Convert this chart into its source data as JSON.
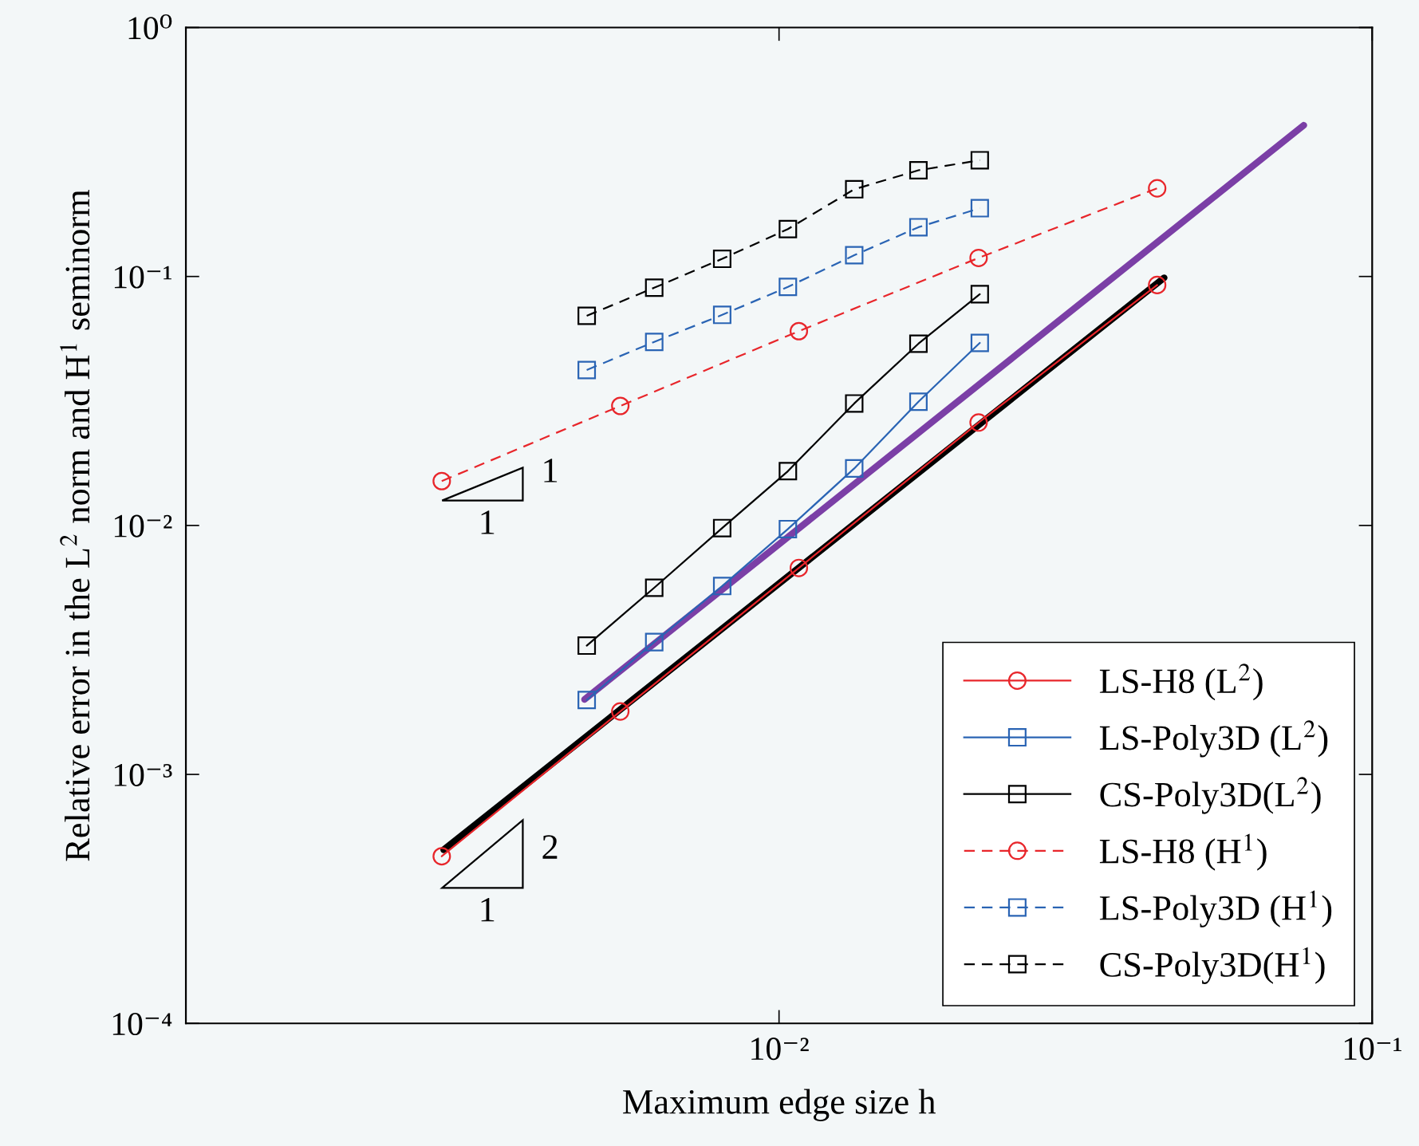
{
  "chart_data": {
    "type": "line",
    "xlabel": "Maximum edge size h",
    "ylabel": "Relative error in the L$^{2}$ norm and H$^{1}$ seminorm",
    "log": "xy",
    "xlim": [
      0.001,
      0.1
    ],
    "ylim": [
      0.0001,
      1
    ],
    "xticks": [
      {
        "value": 0.01,
        "label": "10⁻²"
      },
      {
        "value": 0.1,
        "label": "10⁻¹"
      }
    ],
    "yticks": [
      {
        "value": 0.0001,
        "label": "10⁻⁴"
      },
      {
        "value": 0.001,
        "label": "10⁻³"
      },
      {
        "value": 0.01,
        "label": "10⁻²"
      },
      {
        "value": 0.1,
        "label": "10⁻¹"
      },
      {
        "value": 1,
        "label": "10⁰"
      }
    ],
    "grid": false,
    "legend": "bottom right",
    "series": [
      {
        "name": "LS-H8 (L$^{2}$)",
        "color": "#e8262b",
        "marker": "circle",
        "line_style": "solid",
        "x": [
          0.0027,
          0.0054,
          0.0108,
          0.0217,
          0.0434
        ],
        "values": [
          0.000469,
          0.00179,
          0.00675,
          0.0259,
          0.0924
        ]
      },
      {
        "name": "LS-Poly3D (L$^{2}$)",
        "color": "#2a64b4",
        "marker": "square",
        "line_style": "solid",
        "x": [
          0.00474,
          0.00616,
          0.00802,
          0.01035,
          0.01339,
          0.01718,
          0.0218
        ],
        "values": [
          0.00199,
          0.0034,
          0.00571,
          0.00967,
          0.01694,
          0.0314,
          0.0541
        ]
      },
      {
        "name": "CS-Poly3D(L$^{2}$)",
        "color": "#000000",
        "marker": "square",
        "line_style": "solid",
        "x": [
          0.00474,
          0.00616,
          0.00802,
          0.01035,
          0.01339,
          0.01718,
          0.0218
        ],
        "values": [
          0.00329,
          0.00562,
          0.00976,
          0.01652,
          0.0309,
          0.0537,
          0.0849
        ]
      },
      {
        "name": "LS-H8 (H$^{1}$)",
        "color": "#e8262b",
        "marker": "circle",
        "line_style": "dashed",
        "x": [
          0.0027,
          0.0054,
          0.0108,
          0.0217,
          0.0434
        ],
        "values": [
          0.01507,
          0.0302,
          0.0603,
          0.1187,
          0.226
        ]
      },
      {
        "name": "LS-Poly3D (H$^{1}$)",
        "color": "#2a64b4",
        "marker": "square",
        "line_style": "dashed",
        "x": [
          0.00474,
          0.00616,
          0.00802,
          0.01035,
          0.01339,
          0.01718,
          0.0218
        ],
        "values": [
          0.0421,
          0.0546,
          0.0701,
          0.0908,
          0.1217,
          0.1577,
          0.188
        ]
      },
      {
        "name": "CS-Poly3D(H$^{1}$)",
        "color": "#000000",
        "marker": "square",
        "line_style": "dashed",
        "x": [
          0.00474,
          0.00616,
          0.00802,
          0.01035,
          0.01339,
          0.01718,
          0.0218
        ],
        "values": [
          0.0695,
          0.0901,
          0.1177,
          0.155,
          0.224,
          0.267,
          0.293
        ]
      },
      {
        "color": "#000000",
        "marker": "none",
        "line_style": "solid",
        "x": [
          0.00272,
          0.0446
        ],
        "values": [
          0.000498,
          0.0988
        ]
      },
      {
        "color": "#7b3fa6",
        "marker": "none",
        "line_style": "solid",
        "x": [
          0.0047,
          0.0767
        ],
        "values": [
          0.002,
          0.405
        ]
      }
    ],
    "annotations": [
      "1",
      "1",
      "2",
      "1"
    ]
  }
}
